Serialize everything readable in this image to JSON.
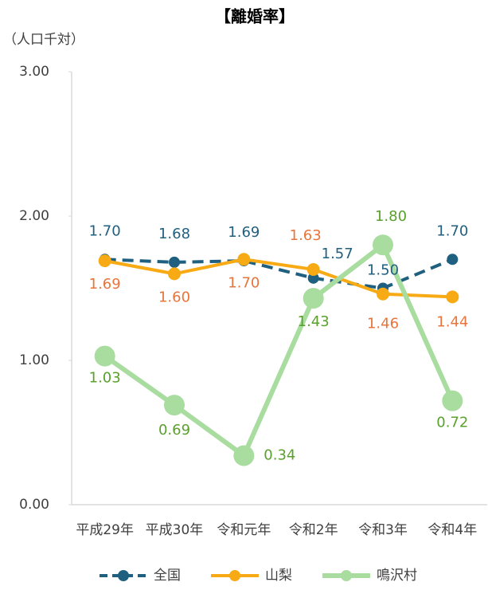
{
  "chart_data": {
    "type": "line",
    "title": "【離婚率】",
    "y_unit_label": "（人口千対）",
    "categories": [
      "平成29年",
      "平成30年",
      "令和元年",
      "令和2年",
      "令和3年",
      "令和4年"
    ],
    "ylim": [
      0,
      3
    ],
    "yticks": [
      {
        "value": 0,
        "label": "0.00"
      },
      {
        "value": 1,
        "label": "1.00"
      },
      {
        "value": 2,
        "label": "2.00"
      },
      {
        "value": 3,
        "label": "3.00"
      }
    ],
    "grid": false,
    "legend": "bottom",
    "series": [
      {
        "name": "全国",
        "color": "#1f5f7f",
        "label_color": "#1f5f7f",
        "dashed": true,
        "values": [
          1.7,
          1.68,
          1.69,
          1.57,
          1.5,
          1.7
        ],
        "value_labels": [
          "1.70",
          "1.68",
          "1.69",
          "1.57",
          "1.50",
          "1.70"
        ]
      },
      {
        "name": "山梨",
        "color": "#f7aa14",
        "label_color": "#e8743b",
        "dashed": false,
        "values": [
          1.69,
          1.6,
          1.7,
          1.63,
          1.46,
          1.44
        ],
        "value_labels": [
          "1.69",
          "1.60",
          "1.70",
          "1.63",
          "1.46",
          "1.44"
        ]
      },
      {
        "name": "鳴沢村",
        "color": "#a9dc9f",
        "label_color": "#5aa02c",
        "dashed": false,
        "values": [
          1.03,
          0.69,
          0.34,
          1.43,
          1.8,
          0.72
        ],
        "value_labels": [
          "1.03",
          "0.69",
          "0.34",
          "1.43",
          "1.80",
          "0.72"
        ]
      }
    ]
  }
}
